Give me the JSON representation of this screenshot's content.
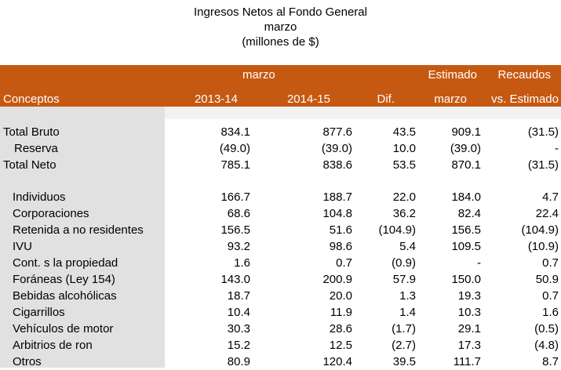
{
  "title": {
    "line1": "Ingresos Netos al Fondo General",
    "line2": "marzo",
    "line3": "(millones de $)"
  },
  "header": {
    "top": {
      "marzo": "marzo",
      "estimado": "Estimado",
      "recaudos": "Recaudos"
    },
    "bottom": {
      "conceptos": "Conceptos",
      "y1": "2013-14",
      "y2": "2014-15",
      "dif": "Dif.",
      "marzo": "marzo",
      "vs": "vs. Estimado"
    }
  },
  "rows": [
    {
      "label": "Total Bruto",
      "v1": "834.1",
      "v2": "877.6",
      "dif": "43.5",
      "est": "909.1",
      "rec": "(31.5)"
    },
    {
      "label": "Reserva",
      "v1": "(49.0)",
      "v2": "(39.0)",
      "dif": "10.0",
      "est": "(39.0)",
      "rec": "-"
    },
    {
      "label": "Total Neto",
      "v1": "785.1",
      "v2": "838.6",
      "dif": "53.5",
      "est": "870.1",
      "rec": "(31.5)"
    },
    {
      "label": "Individuos",
      "v1": "166.7",
      "v2": "188.7",
      "dif": "22.0",
      "est": "184.0",
      "rec": "4.7"
    },
    {
      "label": "Corporaciones",
      "v1": "68.6",
      "v2": "104.8",
      "dif": "36.2",
      "est": "82.4",
      "rec": "22.4"
    },
    {
      "label": "Retenida a no residentes",
      "v1": "156.5",
      "v2": "51.6",
      "dif": "(104.9)",
      "est": "156.5",
      "rec": "(104.9)"
    },
    {
      "label": "IVU",
      "v1": "93.2",
      "v2": "98.6",
      "dif": "5.4",
      "est": "109.5",
      "rec": "(10.9)"
    },
    {
      "label": "Cont. s la propiedad",
      "v1": "1.6",
      "v2": "0.7",
      "dif": "(0.9)",
      "est": "-",
      "rec": "0.7"
    },
    {
      "label": "Foráneas (Ley 154)",
      "v1": "143.0",
      "v2": "200.9",
      "dif": "57.9",
      "est": "150.0",
      "rec": "50.9"
    },
    {
      "label": "Bebidas alcohólicas",
      "v1": "18.7",
      "v2": "20.0",
      "dif": "1.3",
      "est": "19.3",
      "rec": "0.7"
    },
    {
      "label": "Cigarrillos",
      "v1": "10.4",
      "v2": "11.9",
      "dif": "1.4",
      "est": "10.3",
      "rec": "1.6"
    },
    {
      "label": "Vehículos de motor",
      "v1": "30.3",
      "v2": "28.6",
      "dif": "(1.7)",
      "est": "29.1",
      "rec": "(0.5)"
    },
    {
      "label": "Arbitrios de ron",
      "v1": "15.2",
      "v2": "12.5",
      "dif": "(2.7)",
      "est": "17.3",
      "rec": "(4.8)"
    },
    {
      "label": "Otros",
      "v1": "80.9",
      "v2": "120.4",
      "dif": "39.5",
      "est": "111.7",
      "rec": "8.7"
    }
  ]
}
